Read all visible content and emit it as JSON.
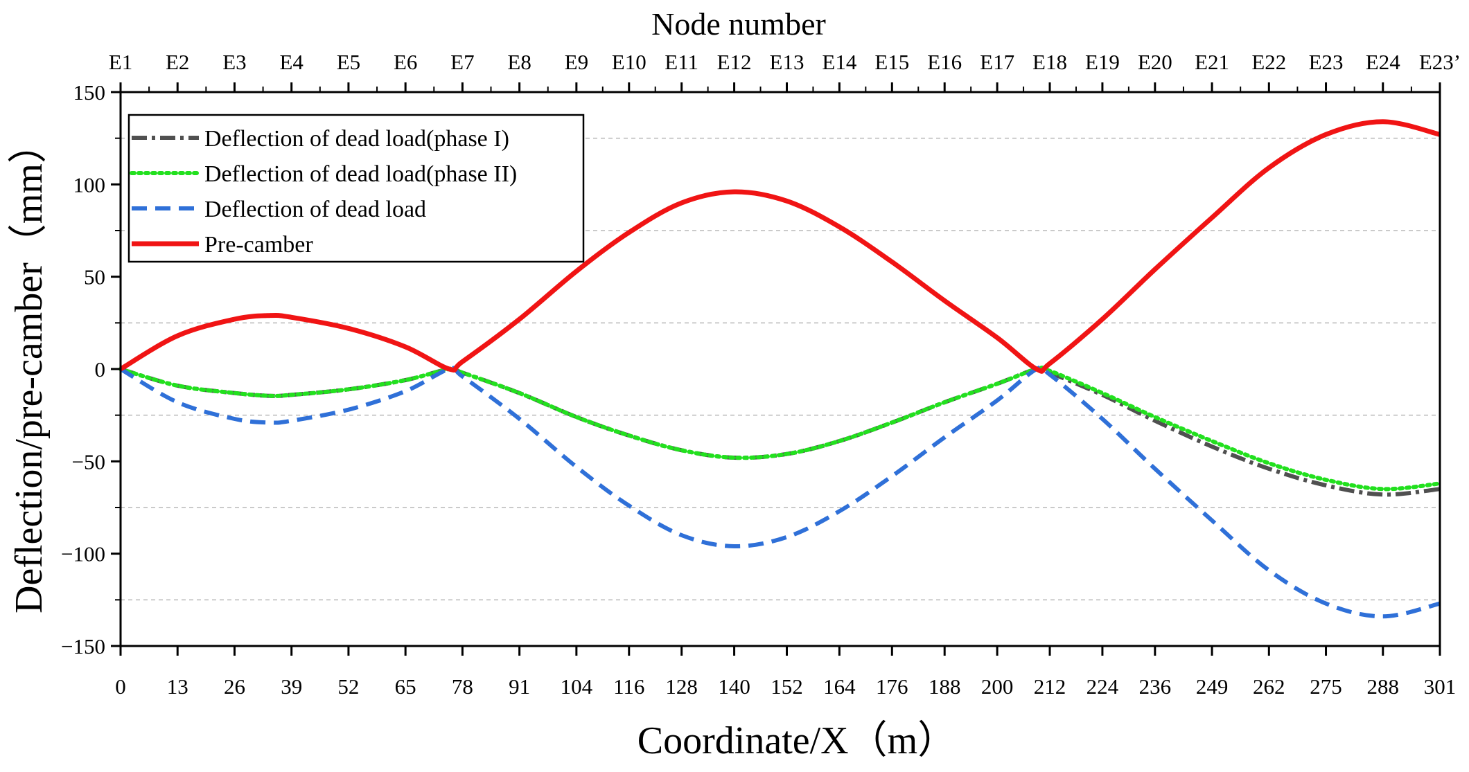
{
  "chart_data": {
    "type": "line",
    "title": "Node number",
    "xlabel": "Coordinate/X（m）",
    "ylabel": "Deflection/pre-camber（mm）",
    "xlim": [
      0,
      301
    ],
    "ylim": [
      -150,
      150
    ],
    "grid": "horizontal dashed at ±25, ±75, ±125",
    "legend_position": "top-left",
    "x_ticks": [
      "0",
      "13",
      "26",
      "39",
      "52",
      "65",
      "78",
      "91",
      "104",
      "116",
      "128",
      "140",
      "152",
      "164",
      "176",
      "188",
      "200",
      "212",
      "224",
      "236",
      "249",
      "262",
      "275",
      "288",
      "301"
    ],
    "x_tick_values": [
      0,
      13,
      26,
      39,
      52,
      65,
      78,
      91,
      104,
      116,
      128,
      140,
      152,
      164,
      176,
      188,
      200,
      212,
      224,
      236,
      249,
      262,
      275,
      288,
      301
    ],
    "y_ticks": [
      "150",
      "100",
      "50",
      "0",
      "−50",
      "−100",
      "−150"
    ],
    "y_tick_values": [
      150,
      100,
      50,
      0,
      -50,
      -100,
      -150
    ],
    "node_labels": [
      "E1",
      "E2",
      "E3",
      "E4",
      "E5",
      "E6",
      "E7",
      "E8",
      "E9",
      "E10",
      "E11",
      "E12",
      "E13",
      "E14",
      "E15",
      "E16",
      "E17",
      "E18",
      "E19",
      "E20",
      "E21",
      "E22",
      "E23",
      "E24",
      "E23’"
    ],
    "series": [
      {
        "name": "Deflection of dead load(phase I)",
        "color": "#505050",
        "style": "dash-dot",
        "x": [
          0,
          13,
          26,
          34,
          39,
          52,
          65,
          75,
          78,
          91,
          104,
          116,
          128,
          140,
          152,
          164,
          176,
          188,
          200,
          209,
          212,
          224,
          236,
          249,
          262,
          275,
          288,
          301
        ],
        "y": [
          0,
          -9,
          -13,
          -14.5,
          -14,
          -11,
          -6,
          0,
          -2,
          -13,
          -26,
          -36,
          -44,
          -48,
          -46,
          -39,
          -29,
          -18,
          -8,
          0,
          -2,
          -14,
          -28,
          -42,
          -54,
          -63,
          -68,
          -65
        ]
      },
      {
        "name": "Deflection of dead load(phase II)",
        "color": "#22e01e",
        "style": "dotted",
        "x": [
          0,
          13,
          26,
          34,
          39,
          52,
          65,
          75,
          78,
          91,
          104,
          116,
          128,
          140,
          152,
          164,
          176,
          188,
          200,
          209,
          212,
          224,
          236,
          249,
          262,
          275,
          288,
          301
        ],
        "y": [
          0,
          -9,
          -13,
          -14.5,
          -14,
          -11,
          -6,
          0,
          -2,
          -13,
          -26,
          -36,
          -44,
          -48,
          -46,
          -39,
          -29,
          -18,
          -8,
          0,
          -1,
          -13,
          -26,
          -39,
          -51,
          -60,
          -65,
          -62
        ]
      },
      {
        "name": "Deflection of dead load",
        "color": "#2f70d8",
        "style": "dashed",
        "x": [
          0,
          13,
          26,
          34,
          39,
          52,
          65,
          75,
          78,
          91,
          104,
          116,
          128,
          140,
          152,
          164,
          176,
          188,
          200,
          209,
          212,
          224,
          236,
          249,
          262,
          275,
          288,
          301
        ],
        "y": [
          0,
          -18,
          -27,
          -29,
          -28,
          -22,
          -12,
          0,
          -4,
          -27,
          -53,
          -74,
          -90,
          -96,
          -91,
          -77,
          -58,
          -37,
          -17,
          0,
          -3,
          -27,
          -54,
          -82,
          -109,
          -127,
          -134,
          -127
        ]
      },
      {
        "name": "Pre-camber",
        "color": "#f01414",
        "style": "solid",
        "x": [
          0,
          13,
          26,
          34,
          39,
          52,
          65,
          75,
          78,
          91,
          104,
          116,
          128,
          140,
          152,
          164,
          176,
          188,
          200,
          209,
          212,
          224,
          236,
          249,
          262,
          275,
          288,
          301
        ],
        "y": [
          0,
          18,
          27,
          29,
          28,
          22,
          12,
          0,
          4,
          27,
          53,
          74,
          90,
          96,
          91,
          77,
          58,
          37,
          17,
          0,
          3,
          27,
          54,
          82,
          109,
          127,
          134,
          127
        ]
      }
    ]
  }
}
